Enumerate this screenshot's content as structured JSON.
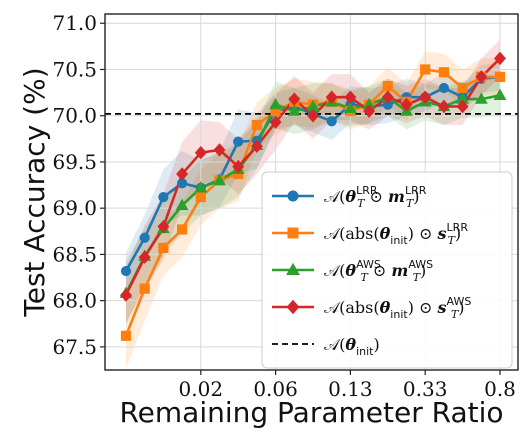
{
  "chart_data": {
    "type": "line",
    "xlabel": "Remaining Parameter Ratio",
    "ylabel": "Test Accuracy (%)",
    "ylim": [
      67.25,
      71.1
    ],
    "yticks": [
      "67.5",
      "68.0",
      "68.5",
      "69.0",
      "69.5",
      "70.0",
      "70.5",
      "71.0"
    ],
    "xticks": [
      {
        "label": "0.02",
        "index": 4
      },
      {
        "label": "0.06",
        "index": 8
      },
      {
        "label": "0.13",
        "index": 12
      },
      {
        "label": "0.33",
        "index": 16
      },
      {
        "label": "0.8",
        "index": 20
      }
    ],
    "grid": true,
    "legend_position": "bottom-right",
    "reference_line": {
      "name": "𝒜(θ_init)",
      "value": 70.02,
      "style": "dashed",
      "color": "#000000"
    },
    "series": [
      {
        "name": "𝒜(θ_T^LRR ⊙ m_T^LRR)",
        "color": "#1f77b4",
        "marker": "circle",
        "values": [
          68.32,
          68.68,
          69.12,
          69.27,
          69.22,
          69.31,
          69.72,
          69.73,
          70.05,
          70.1,
          70.02,
          69.94,
          70.12,
          70.1,
          70.12,
          70.2,
          70.2,
          70.3,
          70.2,
          70.4,
          70.42
        ],
        "band": [
          0.2,
          0.25,
          0.3,
          0.35,
          0.3,
          0.3,
          0.35,
          0.3,
          0.2,
          0.2,
          0.2,
          0.2,
          0.2,
          0.2,
          0.2,
          0.2,
          0.15,
          0.15,
          0.15,
          0.15,
          0.15
        ]
      },
      {
        "name": "𝒜(abs(θ_init) ⊙ s_T^LRR)",
        "color": "#ff7f0e",
        "marker": "square",
        "values": [
          67.62,
          68.13,
          68.57,
          68.77,
          69.12,
          69.3,
          69.37,
          69.9,
          70.05,
          70.15,
          70.12,
          70.15,
          70.05,
          70.12,
          70.32,
          70.15,
          70.5,
          70.47,
          70.3,
          70.42,
          70.42
        ],
        "band": [
          0.35,
          0.35,
          0.3,
          0.3,
          0.3,
          0.3,
          0.3,
          0.25,
          0.25,
          0.25,
          0.25,
          0.2,
          0.2,
          0.2,
          0.2,
          0.2,
          0.2,
          0.2,
          0.2,
          0.2,
          0.2
        ]
      },
      {
        "name": "𝒜(θ_T^AWS ⊙ m_T^AWS)",
        "color": "#2ca02c",
        "marker": "triangle",
        "values": [
          68.08,
          68.48,
          68.78,
          69.03,
          69.22,
          69.3,
          69.42,
          69.68,
          70.12,
          70.05,
          70.1,
          70.15,
          70.08,
          70.12,
          70.2,
          70.05,
          70.15,
          70.1,
          70.18,
          70.18,
          70.22
        ],
        "band": [
          0.35,
          0.3,
          0.3,
          0.3,
          0.3,
          0.3,
          0.3,
          0.25,
          0.25,
          0.25,
          0.25,
          0.2,
          0.2,
          0.2,
          0.2,
          0.2,
          0.2,
          0.2,
          0.2,
          0.2,
          0.2
        ]
      },
      {
        "name": "𝒜(abs(θ_init) ⊙ s_T^AWS)",
        "color": "#d62728",
        "marker": "diamond",
        "values": [
          68.06,
          68.47,
          68.8,
          69.37,
          69.6,
          69.63,
          69.45,
          69.67,
          69.93,
          70.18,
          70.0,
          70.2,
          70.2,
          70.05,
          70.2,
          70.12,
          70.2,
          70.1,
          70.1,
          70.42,
          70.62
        ],
        "band": [
          0.3,
          0.35,
          0.35,
          0.35,
          0.35,
          0.3,
          0.3,
          0.3,
          0.3,
          0.25,
          0.25,
          0.25,
          0.25,
          0.2,
          0.2,
          0.2,
          0.2,
          0.2,
          0.2,
          0.2,
          0.2
        ]
      }
    ]
  },
  "legend": {
    "entries": [
      {
        "marker": "circle",
        "color": "#1f77b4",
        "pre": "𝒜(",
        "base": "θ",
        "sub": "T",
        "sup": "LRR",
        "mid": " ⊙ ",
        "base2": "m",
        "sub2": "T",
        "sup2": "LRR",
        "post": ")"
      },
      {
        "marker": "square",
        "color": "#ff7f0e",
        "pre": "𝒜(abs(",
        "base": "θ",
        "sub": "init",
        "sup": "",
        "mid": ") ⊙ ",
        "base2": "s",
        "sub2": "T",
        "sup2": "LRR",
        "post": ")"
      },
      {
        "marker": "triangle",
        "color": "#2ca02c",
        "pre": "𝒜(",
        "base": "θ",
        "sub": "T",
        "sup": "AWS",
        "mid": " ⊙ ",
        "base2": "m",
        "sub2": "T",
        "sup2": "AWS",
        "post": ")"
      },
      {
        "marker": "diamond",
        "color": "#d62728",
        "pre": "𝒜(abs(",
        "base": "θ",
        "sub": "init",
        "sup": "",
        "mid": ") ⊙ ",
        "base2": "s",
        "sub2": "T",
        "sup2": "AWS",
        "post": ")"
      },
      {
        "marker": "dashed",
        "color": "#000000",
        "pre": "𝒜(",
        "base": "θ",
        "sub": "init",
        "sup": "",
        "mid": "",
        "base2": "",
        "sub2": "",
        "sup2": "",
        "post": ")"
      }
    ]
  }
}
